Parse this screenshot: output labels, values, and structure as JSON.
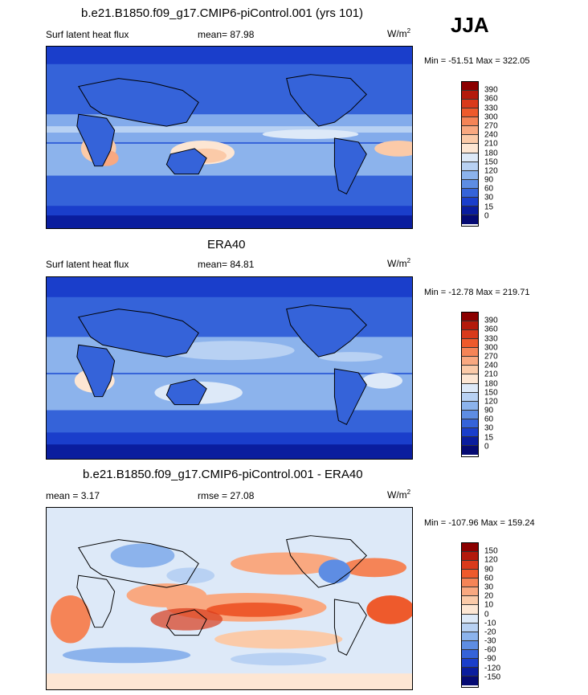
{
  "season": "JJA",
  "units": "W/m",
  "units_sup": "2",
  "panels": [
    {
      "title": "b.e21.B1850.f09_g17.CMIP6-piControl.001 (yrs 101)",
      "left_label": "Surf latent heat flux",
      "center_label": "mean=  87.98",
      "minmax": "Min = -51.51 Max = 322.05",
      "levels": [
        "390",
        "360",
        "330",
        "300",
        "270",
        "240",
        "210",
        "180",
        "150",
        "120",
        "90",
        "60",
        "30",
        "15",
        "0"
      ],
      "colors": [
        "#8b0000",
        "#b31a0c",
        "#d93a1b",
        "#ee5a2c",
        "#f58457",
        "#f9a880",
        "#fbcaa8",
        "#fde6d3",
        "#dde9f8",
        "#b8d1f3",
        "#8cb3ec",
        "#5e8de3",
        "#3563d9",
        "#1a3ecb",
        "#0a1d9e",
        "#050a73"
      ]
    },
    {
      "title": "ERA40",
      "left_label": "Surf latent heat flux",
      "center_label": "mean=  84.81",
      "minmax": "Min = -12.78 Max = 219.71",
      "levels": [
        "390",
        "360",
        "330",
        "300",
        "270",
        "240",
        "210",
        "180",
        "150",
        "120",
        "90",
        "60",
        "30",
        "15",
        "0"
      ],
      "colors": [
        "#8b0000",
        "#b31a0c",
        "#d93a1b",
        "#ee5a2c",
        "#f58457",
        "#f9a880",
        "#fbcaa8",
        "#fde6d3",
        "#dde9f8",
        "#b8d1f3",
        "#8cb3ec",
        "#5e8de3",
        "#3563d9",
        "#1a3ecb",
        "#0a1d9e",
        "#050a73"
      ]
    },
    {
      "title": "b.e21.B1850.f09_g17.CMIP6-piControl.001 - ERA40",
      "left_label": "mean =   3.17",
      "center_label": "rmse =  27.08",
      "minmax": "Min = -107.96 Max = 159.24",
      "levels": [
        "150",
        "120",
        "90",
        "60",
        "30",
        "20",
        "10",
        "0",
        "-10",
        "-20",
        "-30",
        "-60",
        "-90",
        "-120",
        "-150"
      ],
      "colors": [
        "#8b0000",
        "#b31a0c",
        "#d93a1b",
        "#ee5a2c",
        "#f58457",
        "#f9a880",
        "#fbcaa8",
        "#fde6d3",
        "#dde9f8",
        "#b8d1f3",
        "#8cb3ec",
        "#5e8de3",
        "#3563d9",
        "#1a3ecb",
        "#0a1d9e",
        "#050a73"
      ]
    }
  ]
}
